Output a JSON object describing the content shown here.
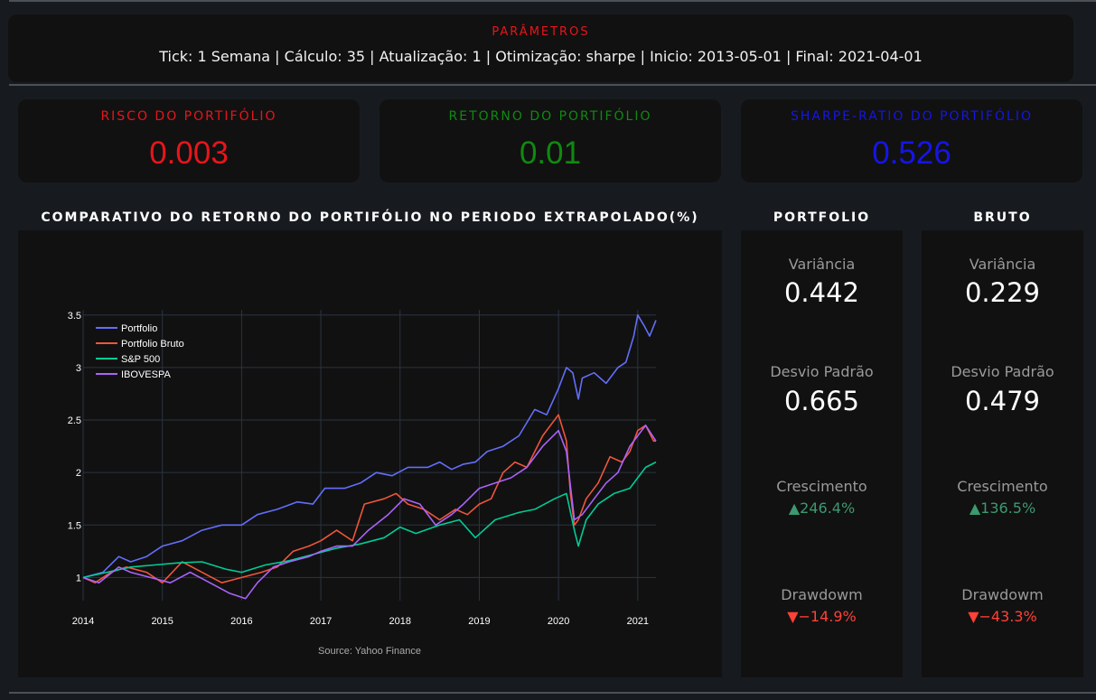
{
  "params": {
    "title": "PARÂMETROS",
    "text": "Tick: 1 Semana | Cálculo: 35 | Atualização: 1 | Otimização: sharpe | Inicio: 2013-05-01 | Final: 2021-04-01"
  },
  "kpis": {
    "risk": {
      "label": "RISCO DO PORTIFÓLIO",
      "value": "0.003",
      "color": "#e8151b"
    },
    "ret": {
      "label": "RETORNO DO PORTIFÓLIO",
      "value": "0.01",
      "color": "#0f8a0f"
    },
    "sharpe": {
      "label": "SHARPE-RATIO DO PORTIFÓLIO",
      "value": "0.526",
      "color": "#1515e8"
    }
  },
  "chart_section_title": "COMPARATIVO DO RETORNO DO PORTIFÓLIO NO PERIODO EXTRAPOLADO(%)",
  "portfolio": {
    "title": "PORTFOLIO",
    "variance_label": "Variância",
    "variance": "0.442",
    "std_label": "Desvio Padrão",
    "std": "0.665",
    "growth_label": "Crescimento",
    "growth": "▲246.4%",
    "drawdown_label": "Drawdowm",
    "drawdown": "▼−14.9%"
  },
  "bruto": {
    "title": "BRUTO",
    "variance_label": "Variância",
    "variance": "0.229",
    "std_label": "Desvio Padrão",
    "std": "0.479",
    "growth_label": "Crescimento",
    "growth": "▲136.5%",
    "drawdown_label": "Drawdowm",
    "drawdown": "▼−43.3%"
  },
  "chart_data": {
    "type": "line",
    "title": "",
    "xlabel": "",
    "ylabel": "",
    "annotation": "Source: Yahoo Finance",
    "xlim": [
      2014.0,
      2021.23
    ],
    "ylim": [
      0.78,
      3.55
    ],
    "x_ticks": [
      2014,
      2015,
      2016,
      2017,
      2018,
      2019,
      2020,
      2021
    ],
    "y_ticks": [
      1,
      1.5,
      2,
      2.5,
      3,
      3.5
    ],
    "y_tick_labels": [
      "1",
      "1.5",
      "2",
      "2.5",
      "3",
      "3.5"
    ],
    "grid": true,
    "legend_position": "top-left",
    "series": [
      {
        "name": "Portfolio",
        "color": "#636efa",
        "x": [
          2014.0,
          2014.25,
          2014.45,
          2014.6,
          2014.8,
          2015.0,
          2015.25,
          2015.5,
          2015.75,
          2016.0,
          2016.2,
          2016.45,
          2016.7,
          2016.9,
          2017.05,
          2017.3,
          2017.5,
          2017.7,
          2017.9,
          2018.1,
          2018.35,
          2018.5,
          2018.65,
          2018.8,
          2018.95,
          2019.1,
          2019.3,
          2019.5,
          2019.7,
          2019.85,
          2020.0,
          2020.1,
          2020.18,
          2020.25,
          2020.3,
          2020.45,
          2020.6,
          2020.75,
          2020.85,
          2020.95,
          2021.0,
          2021.08,
          2021.15,
          2021.23
        ],
        "y": [
          1.0,
          1.05,
          1.2,
          1.15,
          1.2,
          1.3,
          1.35,
          1.45,
          1.5,
          1.5,
          1.6,
          1.65,
          1.72,
          1.7,
          1.85,
          1.85,
          1.9,
          2.0,
          1.97,
          2.05,
          2.05,
          2.1,
          2.03,
          2.08,
          2.1,
          2.2,
          2.25,
          2.35,
          2.6,
          2.55,
          2.8,
          3.0,
          2.95,
          2.7,
          2.9,
          2.95,
          2.85,
          3.0,
          3.05,
          3.3,
          3.5,
          3.4,
          3.3,
          3.45
        ]
      },
      {
        "name": "Portfolio Bruto",
        "color": "#ef553b",
        "x": [
          2014.0,
          2014.15,
          2014.35,
          2014.55,
          2014.8,
          2015.0,
          2015.25,
          2015.5,
          2015.75,
          2016.0,
          2016.25,
          2016.45,
          2016.65,
          2016.85,
          2017.0,
          2017.2,
          2017.4,
          2017.55,
          2017.8,
          2017.95,
          2018.1,
          2018.3,
          2018.5,
          2018.7,
          2018.85,
          2019.0,
          2019.15,
          2019.3,
          2019.45,
          2019.6,
          2019.8,
          2020.0,
          2020.1,
          2020.15,
          2020.2,
          2020.25,
          2020.35,
          2020.5,
          2020.65,
          2020.8,
          2020.9,
          2021.0,
          2021.1,
          2021.2,
          2021.23
        ],
        "y": [
          1.0,
          0.95,
          1.05,
          1.1,
          1.05,
          0.95,
          1.15,
          1.05,
          0.95,
          1.0,
          1.05,
          1.1,
          1.25,
          1.3,
          1.35,
          1.45,
          1.35,
          1.7,
          1.75,
          1.8,
          1.7,
          1.65,
          1.55,
          1.65,
          1.6,
          1.7,
          1.75,
          2.0,
          2.1,
          2.05,
          2.35,
          2.55,
          2.3,
          1.8,
          1.5,
          1.55,
          1.75,
          1.9,
          2.15,
          2.1,
          2.2,
          2.4,
          2.45,
          2.3,
          2.3
        ]
      },
      {
        "name": "S&P 500",
        "color": "#00cc96",
        "x": [
          2014.0,
          2014.3,
          2014.6,
          2014.9,
          2015.2,
          2015.5,
          2015.8,
          2016.0,
          2016.3,
          2016.6,
          2016.9,
          2017.2,
          2017.5,
          2017.8,
          2018.0,
          2018.2,
          2018.5,
          2018.75,
          2018.95,
          2019.2,
          2019.5,
          2019.7,
          2019.95,
          2020.1,
          2020.2,
          2020.25,
          2020.35,
          2020.5,
          2020.7,
          2020.9,
          2021.0,
          2021.1,
          2021.23
        ],
        "y": [
          1.0,
          1.05,
          1.1,
          1.12,
          1.14,
          1.15,
          1.08,
          1.05,
          1.12,
          1.16,
          1.22,
          1.28,
          1.32,
          1.38,
          1.48,
          1.42,
          1.5,
          1.55,
          1.38,
          1.55,
          1.62,
          1.65,
          1.75,
          1.8,
          1.45,
          1.3,
          1.55,
          1.7,
          1.8,
          1.85,
          1.95,
          2.05,
          2.1
        ]
      },
      {
        "name": "IBOVESPA",
        "color": "#ab63fa",
        "x": [
          2014.0,
          2014.2,
          2014.45,
          2014.6,
          2014.85,
          2015.1,
          2015.35,
          2015.6,
          2015.85,
          2016.05,
          2016.2,
          2016.4,
          2016.6,
          2016.85,
          2017.0,
          2017.2,
          2017.4,
          2017.6,
          2017.85,
          2018.05,
          2018.25,
          2018.45,
          2018.65,
          2018.8,
          2019.0,
          2019.2,
          2019.4,
          2019.6,
          2019.8,
          2020.0,
          2020.1,
          2020.2,
          2020.3,
          2020.45,
          2020.6,
          2020.75,
          2020.9,
          2021.0,
          2021.1,
          2021.23
        ],
        "y": [
          1.0,
          0.95,
          1.1,
          1.05,
          1.0,
          0.95,
          1.05,
          0.95,
          0.85,
          0.8,
          0.95,
          1.1,
          1.15,
          1.2,
          1.25,
          1.3,
          1.3,
          1.45,
          1.6,
          1.75,
          1.7,
          1.5,
          1.6,
          1.7,
          1.85,
          1.9,
          1.95,
          2.05,
          2.25,
          2.4,
          2.2,
          1.55,
          1.6,
          1.75,
          1.9,
          2.0,
          2.25,
          2.35,
          2.45,
          2.3
        ]
      }
    ]
  }
}
